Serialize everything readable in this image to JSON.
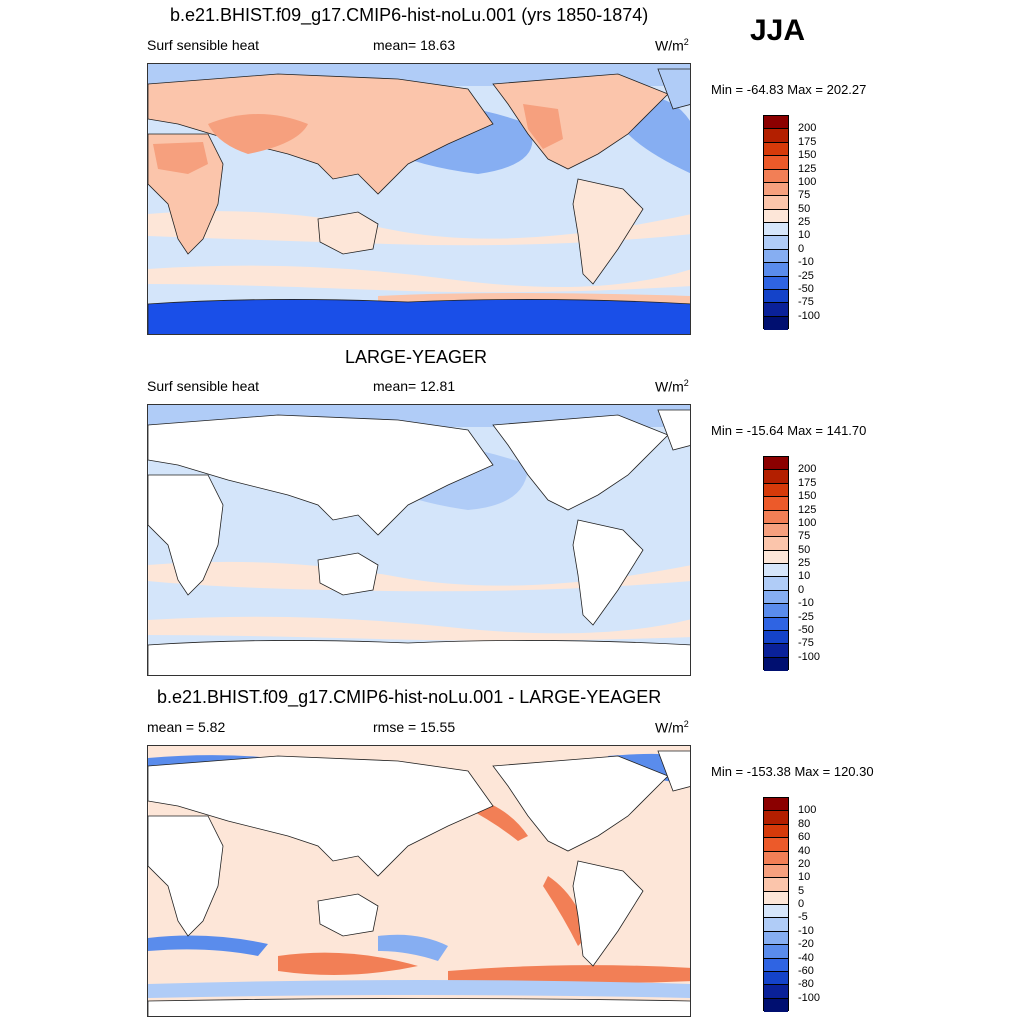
{
  "season": "JJA",
  "units_base": "W/m",
  "units_exp": "2",
  "panels": [
    {
      "title": "b.e21.BHIST.f09_g17.CMIP6-hist-noLu.001 (yrs 1850-1874)",
      "left_label": "Surf sensible heat",
      "stat_label": "mean=  18.63",
      "minmax": "Min = -64.83 Max = 202.27",
      "colorbar": [
        "200",
        "175",
        "150",
        "125",
        "100",
        "75",
        "50",
        "25",
        "10",
        "0",
        "-10",
        "-25",
        "-50",
        "-75",
        "-100"
      ]
    },
    {
      "title": "LARGE-YEAGER",
      "left_label": "Surf sensible heat",
      "stat_label": "mean=  12.81",
      "minmax": "Min = -15.64 Max = 141.70",
      "colorbar": [
        "200",
        "175",
        "150",
        "125",
        "100",
        "75",
        "50",
        "25",
        "10",
        "0",
        "-10",
        "-25",
        "-50",
        "-75",
        "-100"
      ]
    },
    {
      "title": "b.e21.BHIST.f09_g17.CMIP6-hist-noLu.001 - LARGE-YEAGER",
      "left_label": "mean =   5.82",
      "stat_label": "rmse =  15.55",
      "minmax": "Min = -153.38 Max = 120.30",
      "colorbar": [
        "100",
        "80",
        "60",
        "40",
        "20",
        "10",
        "5",
        "0",
        "-5",
        "-10",
        "-20",
        "-40",
        "-60",
        "-80",
        "-100"
      ]
    }
  ],
  "colors": {
    "colorbar_top_to_bottom": [
      "#8b0000",
      "#b31f00",
      "#d63a0a",
      "#ec5a2a",
      "#f27f56",
      "#f6a07e",
      "#fbc5ab",
      "#fde6d8",
      "#d6e6fb",
      "#b0ccf7",
      "#86aef2",
      "#5a8cec",
      "#2f64e3",
      "#1443c9",
      "#0a2199",
      "#000f70"
    ],
    "ocean_light_blue": "#d4e5fa",
    "antarctic_blue": "#1a4fe8",
    "land_peach": "#fcd3bc"
  }
}
